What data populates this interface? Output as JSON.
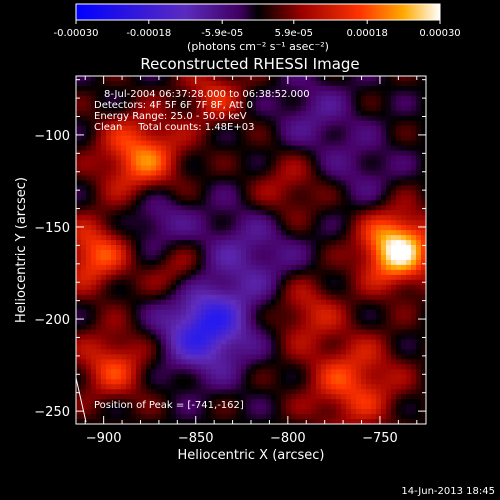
{
  "chart_data": {
    "type": "heatmap",
    "title": "Reconstructed RHESSI Image",
    "xlabel": "Heliocentric X (arcsec)",
    "ylabel": "Heliocentric Y (arcsec)",
    "xlim": [
      -915,
      -725
    ],
    "ylim": [
      -257,
      -68
    ],
    "xticks": [
      -900,
      -850,
      -800,
      -750
    ],
    "yticks": [
      -100,
      -150,
      -200,
      -250
    ],
    "colorbar": {
      "range": [
        -0.0003,
        0.0003
      ],
      "ticks": [
        "-0.00030",
        "-0.00018",
        "-5.9e-05",
        "5.9e-05",
        "0.00018",
        "0.00030"
      ],
      "tick_values": [
        -0.0003,
        -0.00018,
        -5.9e-05,
        5.9e-05,
        0.00018,
        0.0003
      ],
      "unit_label": "(photons cm⁻² s⁻¹ asec⁻²)"
    },
    "annotations": [
      "8-Jul-2004 06:37:28.000 to 06:38:52.000",
      "Detectors: 4F 5F 6F 7F 8F, Att 0",
      "Energy Range: 25.0 - 50.0 keV",
      "Clean     Total counts: 1.48E+03"
    ],
    "peak_label": "Position of Peak = [-741,-162]",
    "peak": {
      "x": -741,
      "y": -162
    },
    "sources": [
      {
        "x": -741,
        "y": -162,
        "sigma": 14,
        "amplitude": 0.0003
      },
      {
        "x": -880,
        "y": -112,
        "sigma": 16,
        "amplitude": 0.0002
      },
      {
        "x": -905,
        "y": -165,
        "sigma": 13,
        "amplitude": 0.00018
      },
      {
        "x": -840,
        "y": -78,
        "sigma": 12,
        "amplitude": 0.00012
      },
      {
        "x": -800,
        "y": -130,
        "sigma": 14,
        "amplitude": 0.0001
      },
      {
        "x": -765,
        "y": -235,
        "sigma": 18,
        "amplitude": 0.00016
      },
      {
        "x": -895,
        "y": -225,
        "sigma": 14,
        "amplitude": 0.00015
      },
      {
        "x": -790,
        "y": -195,
        "sigma": 13,
        "amplitude": 0.00012
      },
      {
        "x": -860,
        "y": -175,
        "sigma": 11,
        "amplitude": 0.0001
      },
      {
        "x": -845,
        "y": -205,
        "sigma": 16,
        "amplitude": -0.00025
      },
      {
        "x": -820,
        "y": -165,
        "sigma": 20,
        "amplitude": -0.0001
      },
      {
        "x": -785,
        "y": -90,
        "sigma": 15,
        "amplitude": -8e-05
      },
      {
        "x": -870,
        "y": -145,
        "sigma": 12,
        "amplitude": -0.0001
      },
      {
        "x": -760,
        "y": -120,
        "sigma": 14,
        "amplitude": -6e-05
      }
    ]
  },
  "footer": {
    "timestamp": "14-Jun-2013 18:45"
  }
}
